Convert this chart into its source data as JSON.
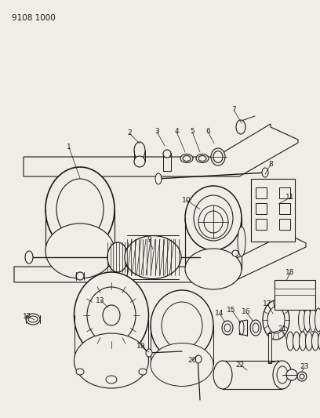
{
  "title": "9108 1000",
  "bg": "#f0ede8",
  "fg": "#1a1a1a",
  "figsize": [
    4.08,
    5.33
  ],
  "dpi": 100
}
